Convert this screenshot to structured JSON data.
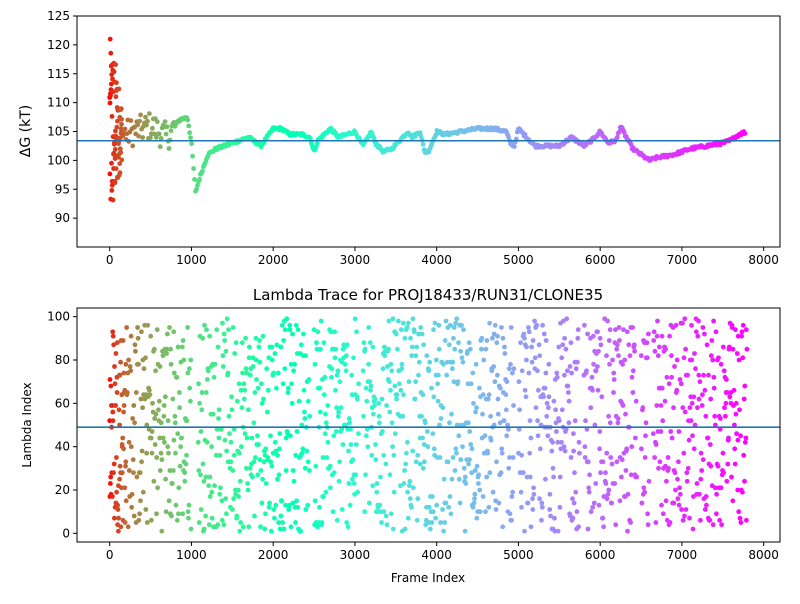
{
  "chart_data": [
    {
      "type": "scatter",
      "title": "",
      "ylabel": "ΔG (kT)",
      "xlabel": "",
      "xlim": [
        -400,
        8200
      ],
      "ylim": [
        85,
        125
      ],
      "xticks": [
        0,
        1000,
        2000,
        3000,
        4000,
        5000,
        6000,
        7000,
        8000
      ],
      "yticks": [
        90,
        95,
        100,
        105,
        110,
        115,
        120,
        125
      ],
      "hline": 103.4,
      "hline_color": "#1f77b4",
      "colormap": "rainbow (red at frame 0 to violet at the last frame)",
      "trace_keypoints": {
        "x": [
          150,
          300,
          500,
          700,
          850,
          950,
          1000,
          1050,
          1100,
          1200,
          1300,
          1500,
          1700,
          1800,
          1850,
          2000,
          2100,
          2200,
          2350,
          2450,
          2500,
          2550,
          2700,
          2800,
          2900,
          3000,
          3100,
          3200,
          3250,
          3350,
          3450,
          3550,
          3650,
          3700,
          3800,
          3850,
          3900,
          4000,
          4100,
          4300,
          4500,
          4700,
          4850,
          4900,
          4950,
          5000,
          5200,
          5500,
          5600,
          5650,
          5750,
          5800,
          5900,
          6000,
          6050,
          6100,
          6200,
          6250,
          6300,
          6400,
          6500,
          6600,
          6700,
          6900,
          7100,
          7300,
          7500,
          7600,
          7700,
          7800
        ],
        "y": [
          104.5,
          105,
          106,
          104,
          107,
          107.5,
          103,
          94.5,
          97,
          101,
          102,
          103,
          104,
          103,
          102.5,
          105.5,
          105.5,
          104.5,
          104.5,
          104,
          101.5,
          103.5,
          105.5,
          104,
          104.5,
          105,
          102.5,
          105,
          103,
          101.5,
          102,
          103.5,
          105,
          104,
          105,
          101.5,
          101.5,
          105,
          104.5,
          105,
          105.5,
          105.5,
          105,
          103,
          102.5,
          105.5,
          102.5,
          102.5,
          103.5,
          104,
          103,
          102.5,
          103.5,
          105,
          104,
          103,
          103.5,
          106,
          104.5,
          102,
          101,
          100,
          100.5,
          101,
          102,
          102.5,
          103,
          103.5,
          104.5,
          105
        ]
      },
      "early_scatter_yrange": [
        90,
        121
      ]
    },
    {
      "type": "scatter",
      "title": "Lambda Trace for PROJ18433/RUN31/CLONE35",
      "xlabel": "Frame Index",
      "ylabel": "Lambda Index",
      "xlim": [
        -400,
        8200
      ],
      "ylim": [
        -4,
        104
      ],
      "xticks": [
        0,
        1000,
        2000,
        3000,
        4000,
        5000,
        6000,
        7000,
        8000
      ],
      "yticks": [
        0,
        20,
        40,
        60,
        80,
        100
      ],
      "hline": 49,
      "hline_color": "#1f77b4",
      "lambda_range": [
        1,
        99
      ],
      "frame_range": [
        0,
        7800
      ],
      "colormap": "rainbow (red at frame 0 to violet at the last frame)"
    }
  ]
}
